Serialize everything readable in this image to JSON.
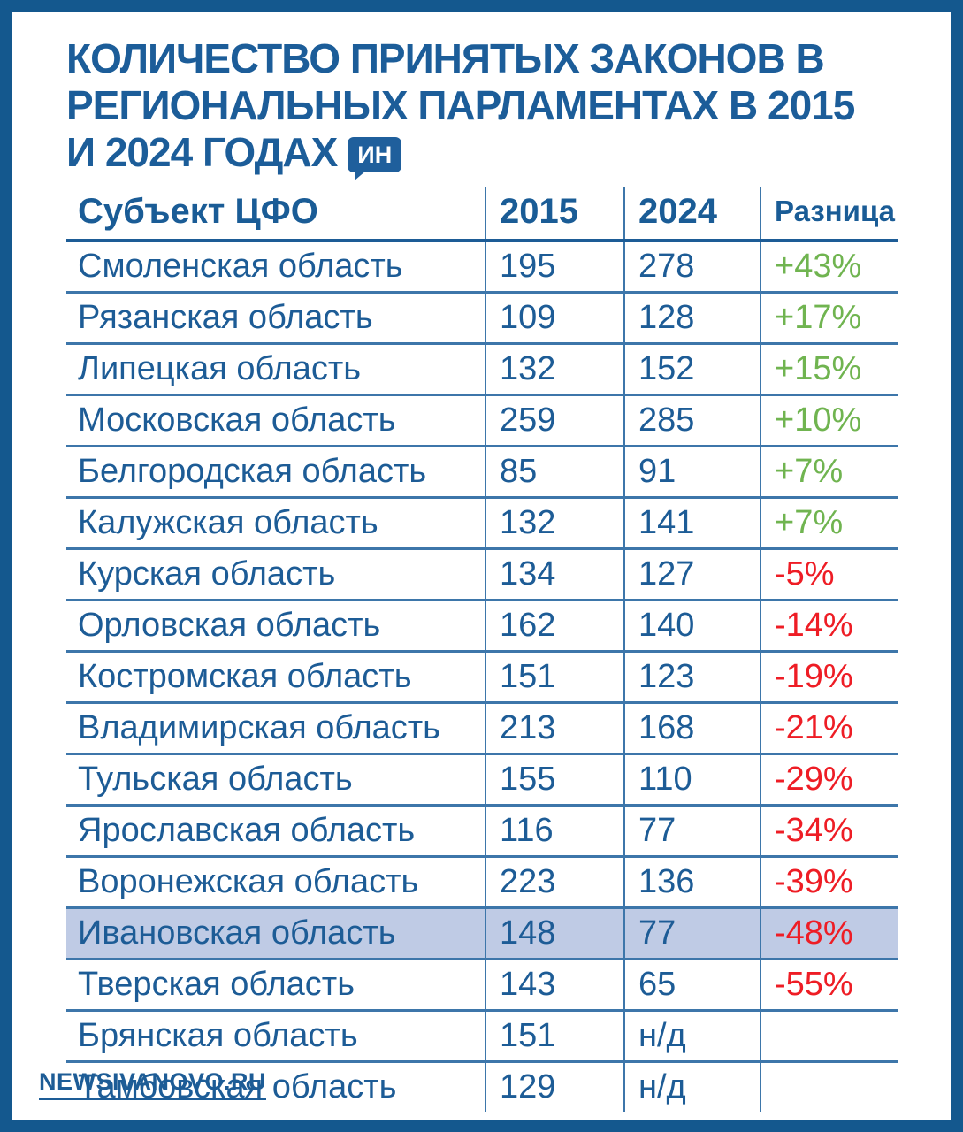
{
  "page": {
    "frame_color": "#14588e",
    "background_color": "#ffffff"
  },
  "title": {
    "lines": [
      "КОЛИЧЕСТВО ПРИНЯТЫХ ЗАКОНОВ В",
      "РЕГИОНАЛЬНЫХ ПАРЛАМЕНТАХ В 2015",
      "И 2024 ГОДАХ"
    ],
    "badge_label": "ИН",
    "color": "#1c5d99"
  },
  "table": {
    "headers": [
      "Субъект ЦФО",
      "2015",
      "2024",
      "Разница"
    ],
    "rows": [
      {
        "region": "Смоленская область",
        "y2015": "195",
        "y2024": "278",
        "diff": "+43%",
        "highlighted": false
      },
      {
        "region": "Рязанская область",
        "y2015": "109",
        "y2024": "128",
        "diff": "+17%",
        "highlighted": false
      },
      {
        "region": "Липецкая область",
        "y2015": "132",
        "y2024": "152",
        "diff": "+15%",
        "highlighted": false
      },
      {
        "region": "Московская область",
        "y2015": "259",
        "y2024": "285",
        "diff": "+10%",
        "highlighted": false
      },
      {
        "region": "Белгородская область",
        "y2015": "85",
        "y2024": "91",
        "diff": "+7%",
        "highlighted": false
      },
      {
        "region": "Калужская область",
        "y2015": "132",
        "y2024": "141",
        "diff": "+7%",
        "highlighted": false
      },
      {
        "region": "Курская область",
        "y2015": "134",
        "y2024": "127",
        "diff": "-5%",
        "highlighted": false
      },
      {
        "region": "Орловская область",
        "y2015": "162",
        "y2024": "140",
        "diff": "-14%",
        "highlighted": false
      },
      {
        "region": "Костромская область",
        "y2015": "151",
        "y2024": "123",
        "diff": "-19%",
        "highlighted": false
      },
      {
        "region": "Владимирская область",
        "y2015": "213",
        "y2024": "168",
        "diff": "-21%",
        "highlighted": false
      },
      {
        "region": "Тульская область",
        "y2015": "155",
        "y2024": "110",
        "diff": "-29%",
        "highlighted": false
      },
      {
        "region": "Ярославская область",
        "y2015": "116",
        "y2024": "77",
        "diff": "-34%",
        "highlighted": false
      },
      {
        "region": "Воронежская область",
        "y2015": "223",
        "y2024": "136",
        "diff": "-39%",
        "highlighted": false
      },
      {
        "region": "Ивановская область",
        "y2015": "148",
        "y2024": "77",
        "diff": "-48%",
        "highlighted": true
      },
      {
        "region": "Тверская область",
        "y2015": "143",
        "y2024": "65",
        "diff": "-55%",
        "highlighted": false
      },
      {
        "region": "Брянская область",
        "y2015": "151",
        "y2024": "н/д",
        "diff": "",
        "highlighted": false
      },
      {
        "region": "Тамбовская область",
        "y2015": "129",
        "y2024": "н/д",
        "diff": "",
        "highlighted": false
      }
    ],
    "colors": {
      "text": "#1d5c96",
      "positive": "#70b450",
      "negative": "#ee1d25",
      "highlight_bg": "#bfcbe5",
      "row_line": "#3d76aa",
      "header_line": "#1d5c96"
    }
  },
  "footer": {
    "site": "NEWSIVANOVO.RU"
  }
}
